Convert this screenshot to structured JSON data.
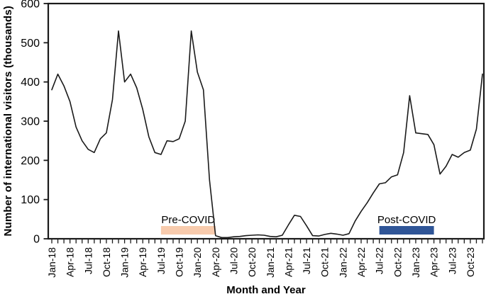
{
  "figure": {
    "background": "#ffffff",
    "axis_color": "#1a1a1a"
  },
  "chart_data": {
    "type": "line",
    "title": "",
    "xlabel": "Month and Year",
    "ylabel": "Number of international visitors (thousands)",
    "ylim": [
      0,
      600
    ],
    "y_ticks": [
      0,
      100,
      200,
      300,
      400,
      500,
      600
    ],
    "x_label_step": 3,
    "grid": false,
    "legend": "none",
    "line_color": "#1a1a1a",
    "x": [
      "Jan-18",
      "Feb-18",
      "Mar-18",
      "Apr-18",
      "May-18",
      "Jun-18",
      "Jul-18",
      "Aug-18",
      "Sep-18",
      "Oct-18",
      "Nov-18",
      "Dec-18",
      "Jan-19",
      "Feb-19",
      "Mar-19",
      "Apr-19",
      "May-19",
      "Jun-19",
      "Jul-19",
      "Aug-19",
      "Sep-19",
      "Oct-19",
      "Nov-19",
      "Dec-19",
      "Jan-20",
      "Feb-20",
      "Mar-20",
      "Apr-20",
      "May-20",
      "Jun-20",
      "Jul-20",
      "Aug-20",
      "Sep-20",
      "Oct-20",
      "Nov-20",
      "Dec-20",
      "Jan-21",
      "Feb-21",
      "Mar-21",
      "Apr-21",
      "May-21",
      "Jun-21",
      "Jul-21",
      "Aug-21",
      "Sep-21",
      "Oct-21",
      "Nov-21",
      "Dec-21",
      "Jan-22",
      "Feb-22",
      "Mar-22",
      "Apr-22",
      "May-22",
      "Jun-22",
      "Jul-22",
      "Aug-22",
      "Sep-22",
      "Oct-22",
      "Nov-22",
      "Dec-22",
      "Jan-23",
      "Feb-23",
      "Mar-23",
      "Apr-23",
      "May-23",
      "Jun-23",
      "Jul-23",
      "Aug-23",
      "Sep-23",
      "Oct-23",
      "Nov-23",
      "Dec-23"
    ],
    "series": [
      {
        "name": "Number of international visitors (thousands)",
        "values": [
          380,
          420,
          390,
          350,
          285,
          250,
          228,
          220,
          255,
          270,
          355,
          530,
          400,
          420,
          385,
          330,
          260,
          220,
          215,
          250,
          248,
          255,
          300,
          530,
          425,
          380,
          150,
          8,
          3,
          3,
          5,
          6,
          8,
          9,
          10,
          9,
          6,
          5,
          9,
          35,
          60,
          57,
          33,
          8,
          7,
          11,
          14,
          12,
          9,
          13,
          45,
          70,
          92,
          117,
          140,
          143,
          158,
          163,
          220,
          365,
          270,
          268,
          266,
          240,
          165,
          185,
          215,
          208,
          220,
          226,
          280,
          420
        ]
      }
    ],
    "annotations": [
      {
        "label": "Pre-COVID",
        "from": "Jul-19",
        "to": "Apr-20",
        "color": "#F8CBAD",
        "text_color": "#000000"
      },
      {
        "label": "Post-COVID",
        "from": "Jul-22",
        "to": "Apr-23",
        "color": "#2F5597",
        "text_color": "#000000"
      }
    ]
  }
}
